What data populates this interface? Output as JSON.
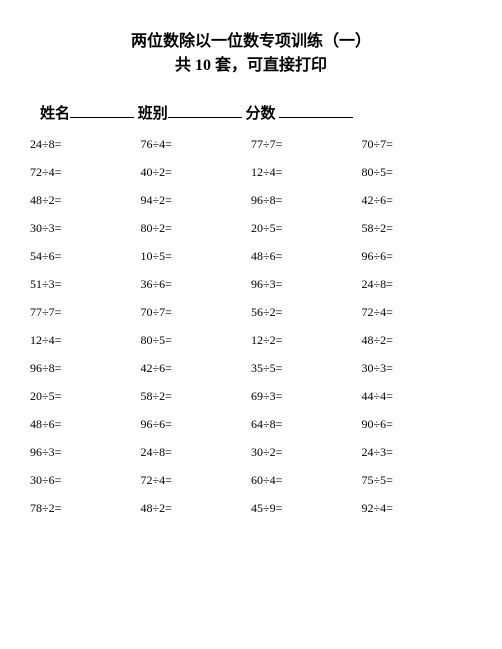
{
  "title_line1": "两位数除以一位数专项训练（一）",
  "title_line2": "共 10 套，可直接打印",
  "info": {
    "name_label": "姓名",
    "class_label": "班别",
    "score_label": "分数"
  },
  "style": {
    "background_color": "#ffffff",
    "text_color": "#000000",
    "title_fontsize": 16,
    "info_fontsize": 15,
    "cell_fontsize": 12,
    "columns": 4,
    "rows": 14,
    "divide_symbol": "÷",
    "equals_symbol": "="
  },
  "problems": [
    [
      "24÷8=",
      "76÷4=",
      "77÷7=",
      "70÷7="
    ],
    [
      "72÷4=",
      "40÷2=",
      "12÷4=",
      "80÷5="
    ],
    [
      "48÷2=",
      "94÷2=",
      "96÷8=",
      "42÷6="
    ],
    [
      "30÷3=",
      "80÷2=",
      "20÷5=",
      "58÷2="
    ],
    [
      "54÷6=",
      "10÷5=",
      "48÷6=",
      "96÷6="
    ],
    [
      "51÷3=",
      "36÷6=",
      "96÷3=",
      "24÷8="
    ],
    [
      "77÷7=",
      "70÷7=",
      "56÷2=",
      "72÷4="
    ],
    [
      "12÷4=",
      "80÷5=",
      "12÷2=",
      "48÷2="
    ],
    [
      "96÷8=",
      "42÷6=",
      "35÷5=",
      "30÷3="
    ],
    [
      "20÷5=",
      "58÷2=",
      "69÷3=",
      "44÷4="
    ],
    [
      "48÷6=",
      "96÷6=",
      "64÷8=",
      "90÷6="
    ],
    [
      "96÷3=",
      "24÷8=",
      "30÷2=",
      "24÷3="
    ],
    [
      "30÷6=",
      "72÷4=",
      "60÷4=",
      "75÷5="
    ],
    [
      "78÷2=",
      "48÷2=",
      "45÷9=",
      "92÷4="
    ]
  ]
}
